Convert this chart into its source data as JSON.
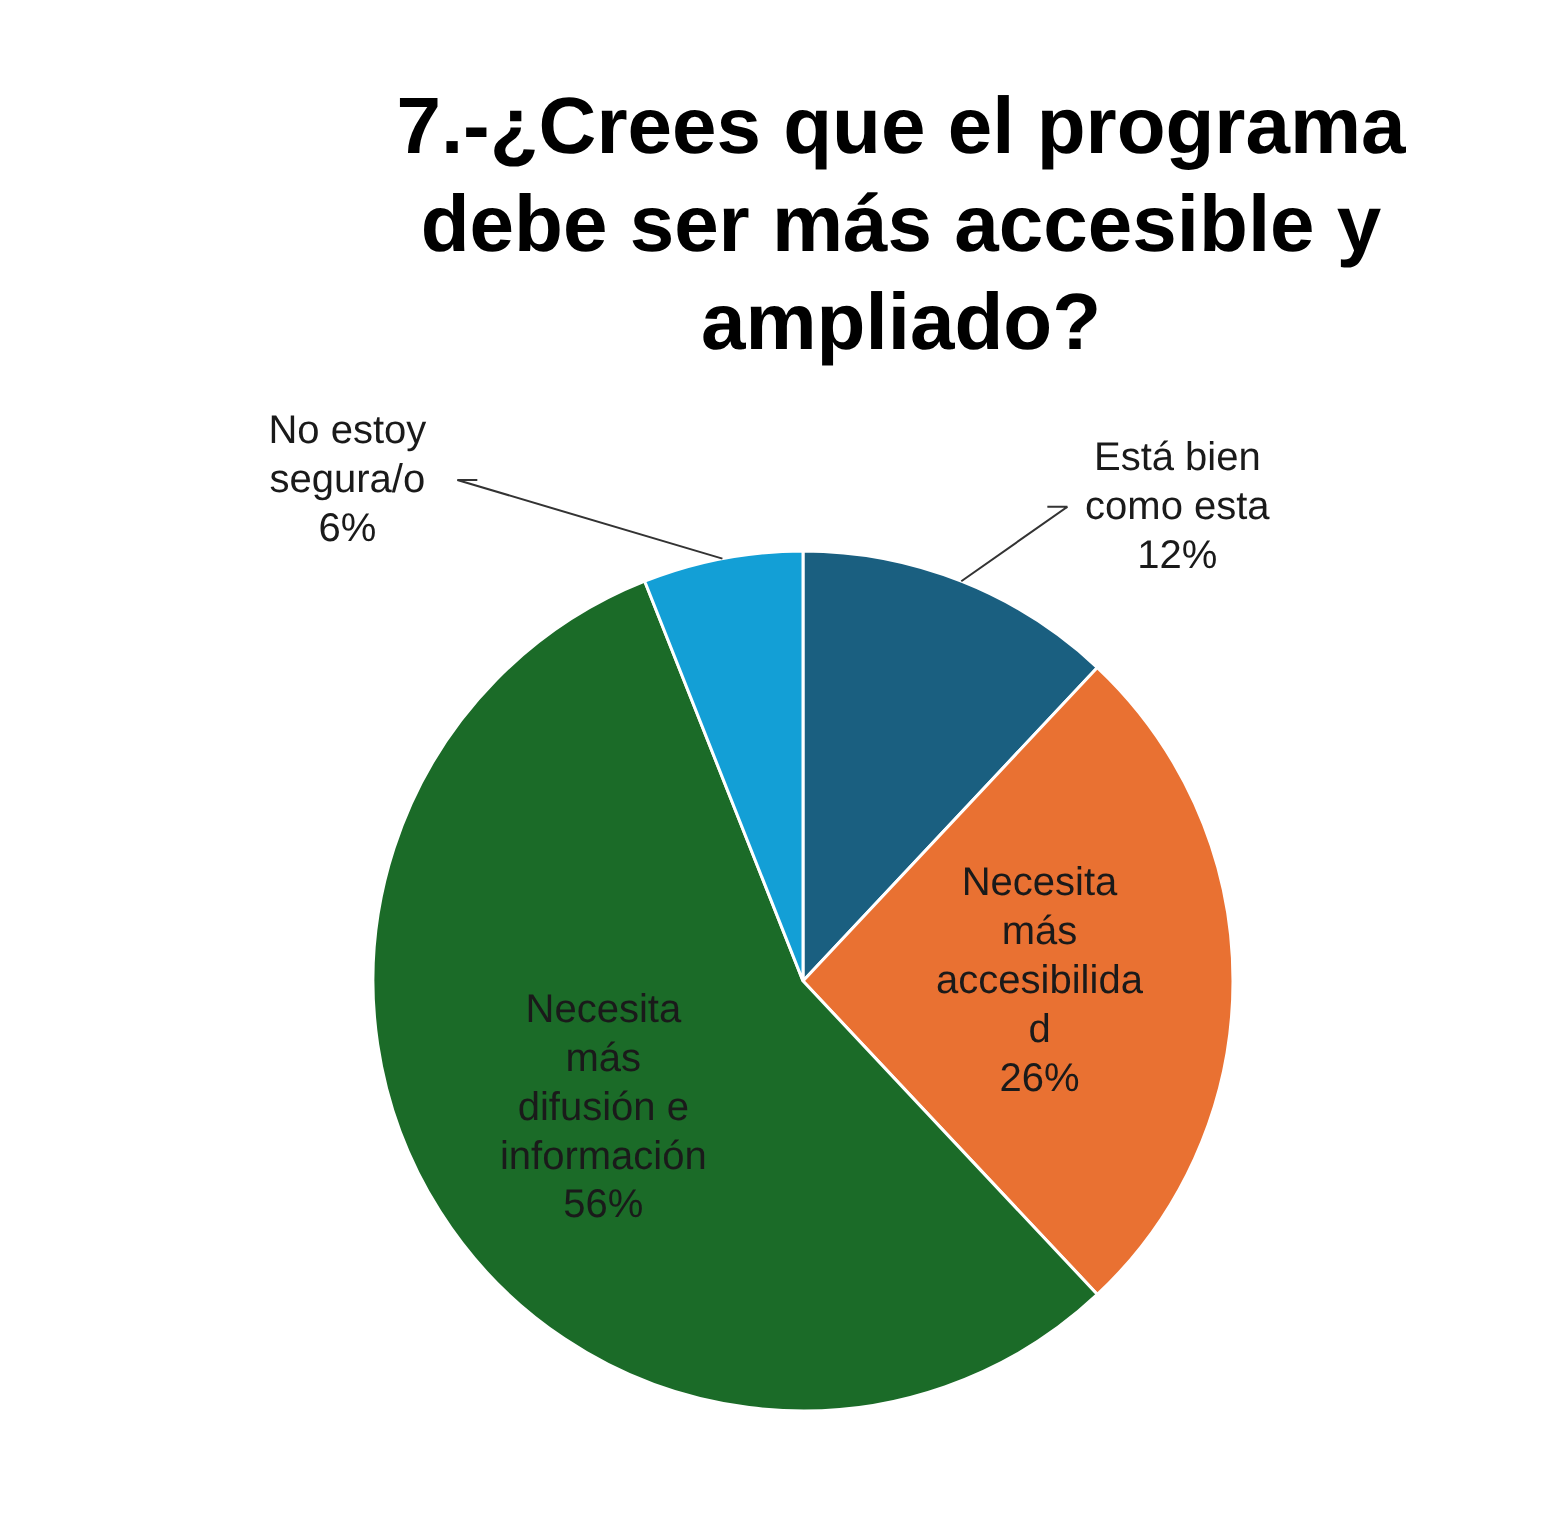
{
  "chart_data": {
    "type": "pie",
    "title": "7.-¿Crees que el programa debe ser más accesible y ampliado?",
    "categories": [
      "Está bien como esta",
      "Necesita más accesibilidad",
      "Necesita más difusión e información",
      "No estoy segura/o"
    ],
    "values": [
      12,
      26,
      56,
      6
    ],
    "colors": [
      "#1a5f80",
      "#e97132",
      "#1b6b28",
      "#139fd6"
    ],
    "value_labels": [
      "12%",
      "26%",
      "56%",
      "6%"
    ]
  }
}
